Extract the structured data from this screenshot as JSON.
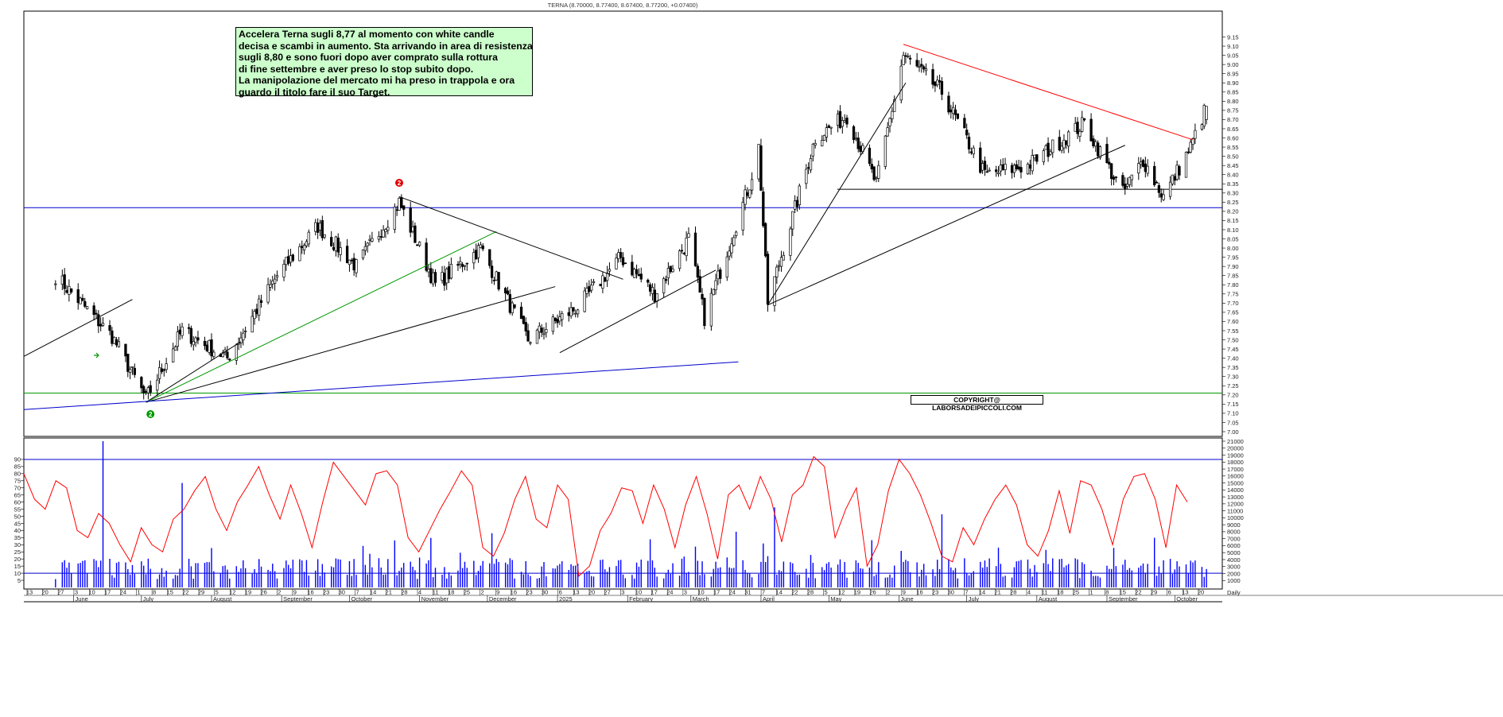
{
  "header": {
    "title": "TERNA (8.70000, 8.77400, 8.67400, 8.77200, +0.07400)"
  },
  "annotation": {
    "lines": [
      "Accelera Terna sugli 8,77 al momento con white candle",
      "decisa e scambi in aumento. Sta arrivando in area di resistenza",
      "sugli 8,80 e sono fuori dopo aver comprato sulla rottura",
      "di fine settembre e aver preso lo stop subito dopo.",
      "La manipolazione del mercato mi ha preso in trappola e ora",
      "guardo il titolo fare il suo Target."
    ],
    "background": "#ccffcc"
  },
  "copyright": "COPYRIGHT@ LABORSADEIPICCOLI.COM",
  "markers": [
    {
      "label": "2",
      "color": "#e00000",
      "position": "above swing high"
    },
    {
      "label": "2",
      "color": "#009900",
      "position": "below swing low"
    }
  ],
  "colors": {
    "candle_up": "#ffffff",
    "candle_down": "#000000",
    "horizontal_resistance": "#0000cc",
    "horizontal_support": "#009900",
    "rsi_line": "#ff0000",
    "volume_bars": "#0000ff",
    "trendline_red": "#ff0000",
    "trendline_green": "#009900",
    "trendline_blue": "#0000cc"
  },
  "chart_data": [
    {
      "type": "candlestick",
      "title": "TERNA (8.70000, 8.77400, 8.67400, 8.77200, +0.07400)",
      "ylim": [
        7.0,
        9.15
      ],
      "y_ticks": [
        "7.00",
        "7.05",
        "7.10",
        "7.15",
        "7.20",
        "7.25",
        "7.30",
        "7.35",
        "7.40",
        "7.45",
        "7.50",
        "7.55",
        "7.60",
        "7.65",
        "7.70",
        "7.75",
        "7.80",
        "7.85",
        "7.90",
        "7.95",
        "8.00",
        "8.05",
        "8.10",
        "8.15",
        "8.20",
        "8.25",
        "8.30",
        "8.35",
        "8.40",
        "8.45",
        "8.50",
        "8.55",
        "8.60",
        "8.65",
        "8.70",
        "8.75",
        "8.80",
        "8.85",
        "8.90",
        "8.95",
        "9.00",
        "9.05",
        "9.10",
        "9.15"
      ],
      "last_candle": {
        "open": 8.7,
        "high": 8.774,
        "low": 8.674,
        "close": 8.772,
        "change": 0.074
      },
      "horizontal_levels": [
        {
          "value": 8.22,
          "color": "#0000cc"
        },
        {
          "value": 7.21,
          "color": "#009900"
        },
        {
          "value": 8.32,
          "color": "#000000"
        }
      ],
      "anchor_points": [
        {
          "date": "2024-05-24",
          "close": 7.85
        },
        {
          "date": "2024-06-18",
          "close": 7.52
        },
        {
          "date": "2024-07-03",
          "close": 7.18
        },
        {
          "date": "2024-07-19",
          "close": 7.55
        },
        {
          "date": "2024-08-08",
          "close": 7.4
        },
        {
          "date": "2024-08-30",
          "close": 7.85
        },
        {
          "date": "2024-09-17",
          "close": 8.12
        },
        {
          "date": "2024-10-04",
          "close": 7.9
        },
        {
          "date": "2024-10-23",
          "close": 8.25
        },
        {
          "date": "2024-11-08",
          "close": 7.8
        },
        {
          "date": "2024-11-28",
          "close": 8.0
        },
        {
          "date": "2024-12-19",
          "close": 7.5
        },
        {
          "date": "2025-01-10",
          "close": 7.68
        },
        {
          "date": "2025-01-29",
          "close": 7.95
        },
        {
          "date": "2025-02-13",
          "close": 7.75
        },
        {
          "date": "2025-02-28",
          "close": 8.05
        },
        {
          "date": "2025-03-07",
          "close": 7.62
        },
        {
          "date": "2025-03-27",
          "close": 8.35
        },
        {
          "date": "2025-03-31",
          "close": 8.55
        },
        {
          "date": "2025-04-04",
          "close": 7.7
        },
        {
          "date": "2025-04-25",
          "close": 8.6
        },
        {
          "date": "2025-05-09",
          "close": 8.72
        },
        {
          "date": "2025-05-22",
          "close": 8.35
        },
        {
          "date": "2025-06-03",
          "close": 9.05
        },
        {
          "date": "2025-06-20",
          "close": 8.85
        },
        {
          "date": "2025-07-09",
          "close": 8.4
        },
        {
          "date": "2025-07-28",
          "close": 8.45
        },
        {
          "date": "2025-08-22",
          "close": 8.68
        },
        {
          "date": "2025-09-08",
          "close": 8.3
        },
        {
          "date": "2025-09-17",
          "close": 8.48
        },
        {
          "date": "2025-09-26",
          "close": 8.28
        },
        {
          "date": "2025-10-08",
          "close": 8.55
        },
        {
          "date": "2025-10-15",
          "close": 8.772
        }
      ]
    },
    {
      "type": "line",
      "title": "",
      "ylim": [
        0,
        95
      ],
      "y_ticks": [
        "5",
        "10",
        "15",
        "20",
        "25",
        "30",
        "35",
        "40",
        "45",
        "50",
        "55",
        "60",
        "65",
        "70",
        "75",
        "80",
        "85",
        "90"
      ],
      "reference_levels": [
        90,
        10
      ],
      "series": [
        {
          "values": [
            80,
            62,
            55,
            75,
            70,
            40,
            35,
            52,
            45,
            30,
            18,
            42,
            30,
            25,
            48,
            55,
            68,
            78,
            55,
            40,
            60,
            72,
            85,
            65,
            48,
            72,
            52,
            28,
            60,
            88,
            78,
            68,
            58,
            80,
            82,
            72,
            35,
            25,
            40,
            55,
            68,
            82,
            72,
            28,
            22,
            38,
            62,
            78,
            48,
            42,
            72,
            62,
            8,
            15,
            40,
            52,
            70,
            68,
            45,
            72,
            55,
            28,
            58,
            78,
            52,
            20,
            65,
            72,
            55,
            78,
            62,
            32,
            65,
            72,
            92,
            85,
            35,
            55,
            70,
            15,
            30,
            68,
            90,
            80,
            65,
            45,
            22,
            18,
            42,
            30,
            48,
            62,
            72,
            58,
            30,
            22,
            40,
            68,
            38,
            75,
            72,
            55,
            30,
            62,
            78,
            80,
            62,
            28,
            72,
            60
          ]
        }
      ]
    },
    {
      "type": "bar",
      "title": "",
      "ylim": [
        0,
        21000
      ],
      "y_ticks": [
        "1000",
        "2000",
        "3000",
        "4000",
        "5000",
        "6000",
        "7000",
        "8000",
        "9000",
        "10000",
        "11000",
        "12000",
        "13000",
        "14000",
        "15000",
        "16000",
        "17000",
        "18000",
        "19000",
        "20000",
        "21000"
      ],
      "spikes": [
        {
          "date": "2024-06-14",
          "volume": 21000
        },
        {
          "date": "2024-07-19",
          "volume": 15000
        },
        {
          "date": "2025-03-21",
          "volume": 8000
        },
        {
          "date": "2025-04-07",
          "volume": 11500
        },
        {
          "date": "2025-06-20",
          "volume": 10500
        }
      ]
    }
  ],
  "x_axis": {
    "day_ticks": [
      "13",
      "20",
      "27",
      "3",
      "10",
      "17",
      "24",
      "1",
      "8",
      "15",
      "22",
      "29",
      "5",
      "12",
      "19",
      "26",
      "2",
      "9",
      "16",
      "23",
      "30",
      "7",
      "14",
      "21",
      "28",
      "4",
      "11",
      "18",
      "25",
      "2",
      "9",
      "16",
      "23",
      "30",
      "6",
      "13",
      "20",
      "27",
      "3",
      "10",
      "17",
      "24",
      "3",
      "10",
      "17",
      "24",
      "31",
      "7",
      "14",
      "22",
      "28",
      "5",
      "12",
      "19",
      "26",
      "2",
      "9",
      "16",
      "23",
      "30",
      "7",
      "14",
      "21",
      "28",
      "4",
      "11",
      "18",
      "25",
      "1",
      "8",
      "15",
      "22",
      "29",
      "6",
      "13",
      "20"
    ],
    "months": [
      "June",
      "July",
      "August",
      "September",
      "October",
      "November",
      "December",
      "2025",
      "February",
      "March",
      "April",
      "May",
      "June",
      "July",
      "August",
      "September",
      "October"
    ],
    "right_label": "Daily"
  }
}
